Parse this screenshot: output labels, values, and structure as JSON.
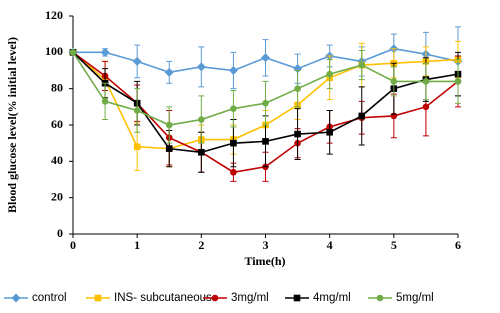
{
  "chart_data": {
    "type": "line",
    "x_label": "Time(h)",
    "y_label": "Blood glucose level(% initial level)",
    "x": [
      0,
      0.5,
      1,
      1.5,
      2,
      2.5,
      3,
      3.5,
      4,
      4.5,
      5,
      5.5,
      6
    ],
    "xlim": [
      0,
      6
    ],
    "xticks": [
      0,
      1,
      2,
      3,
      4,
      5,
      6
    ],
    "ylim": [
      0,
      120
    ],
    "yticks": [
      0,
      20,
      40,
      60,
      80,
      100,
      120
    ],
    "series": [
      {
        "name": "control",
        "color": "#5b9bd5",
        "marker": "diamond",
        "values": [
          100,
          100,
          95,
          89,
          92,
          90,
          97,
          91,
          98,
          95,
          102,
          99,
          95
        ],
        "errors": [
          0,
          2,
          9,
          6,
          11,
          10,
          10,
          8,
          6,
          8,
          8,
          12,
          19
        ]
      },
      {
        "name": "INS- subcutaneous",
        "color": "#ffc000",
        "marker": "square",
        "values": [
          100,
          85,
          48,
          47,
          52,
          52,
          60,
          71,
          86,
          93,
          94,
          95,
          96
        ],
        "errors": [
          0,
          10,
          13,
          10,
          8,
          8,
          8,
          8,
          12,
          12,
          8,
          8,
          10
        ]
      },
      {
        "name": "3mg/ml",
        "color": "#c00000",
        "marker": "circle",
        "values": [
          100,
          87,
          72,
          53,
          45,
          34,
          37,
          50,
          59,
          64,
          65,
          70,
          84
        ],
        "errors": [
          0,
          8,
          10,
          15,
          11,
          5,
          8,
          8,
          9,
          9,
          12,
          16,
          14
        ]
      },
      {
        "name": "4mg/ml",
        "color": "#000000",
        "marker": "square",
        "values": [
          100,
          83,
          72,
          47,
          45,
          50,
          51,
          55,
          56,
          65,
          80,
          85,
          88
        ],
        "errors": [
          0,
          8,
          12,
          10,
          11,
          13,
          14,
          14,
          12,
          16,
          14,
          12,
          12
        ]
      },
      {
        "name": "5mg/ml",
        "color": "#70ad47",
        "marker": "circle",
        "values": [
          100,
          73,
          68,
          60,
          63,
          69,
          72,
          80,
          88,
          93,
          84,
          84,
          84
        ],
        "errors": [
          0,
          10,
          12,
          10,
          13,
          10,
          12,
          10,
          8,
          8,
          8,
          10,
          12
        ]
      }
    ]
  }
}
